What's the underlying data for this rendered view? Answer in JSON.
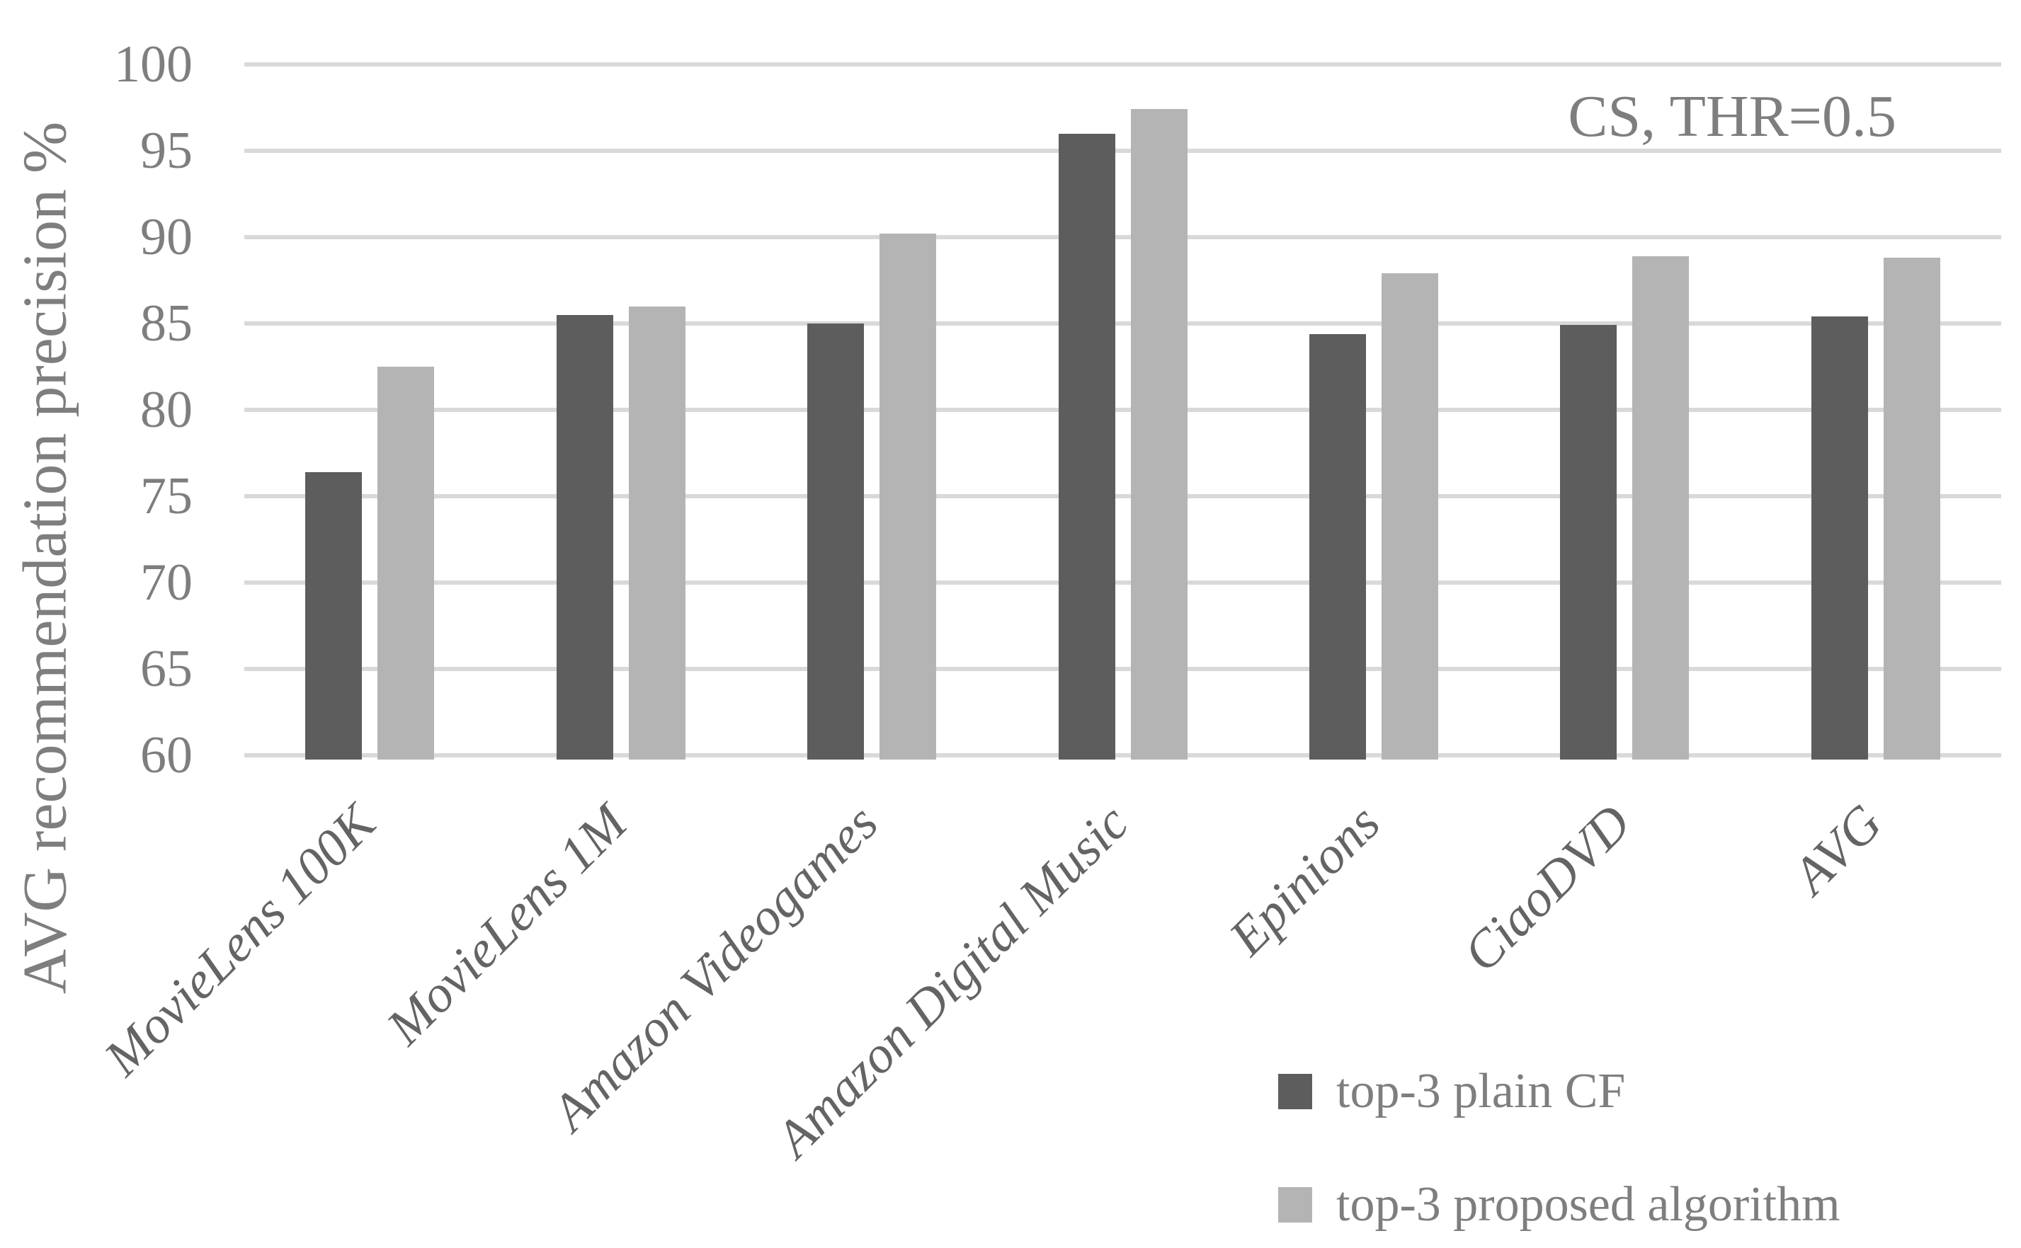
{
  "colors": {
    "series_plain": "#5d5d5d",
    "series_proposed": "#b4b4b4",
    "gridline": "#d9d9d9",
    "tick_text": "#7e7e7e",
    "category_text": "#646464",
    "background": "#ffffff"
  },
  "chart_data": {
    "type": "bar",
    "title": "",
    "xlabel": "",
    "ylabel": "AVG recommendation precision %",
    "annotation": "CS, THR=0.5",
    "categories": [
      "MovieLens 100K",
      "MovieLens 1M",
      "Amazon Videogames",
      "Amazon Digital Music",
      "Epinions",
      "CiaoDVD",
      "AVG"
    ],
    "series": [
      {
        "name": "top-3 plain CF",
        "values": [
          76.4,
          85.5,
          85.0,
          96.0,
          84.4,
          84.9,
          85.4
        ]
      },
      {
        "name": "top-3 proposed algorithm",
        "values": [
          82.5,
          86.0,
          90.2,
          97.4,
          87.9,
          88.9,
          88.8
        ]
      }
    ],
    "ylim": [
      60,
      100
    ],
    "yticks": [
      100,
      95,
      90,
      85,
      80,
      75,
      70,
      65,
      60
    ],
    "grid": true,
    "legend_position": "bottom-right"
  }
}
